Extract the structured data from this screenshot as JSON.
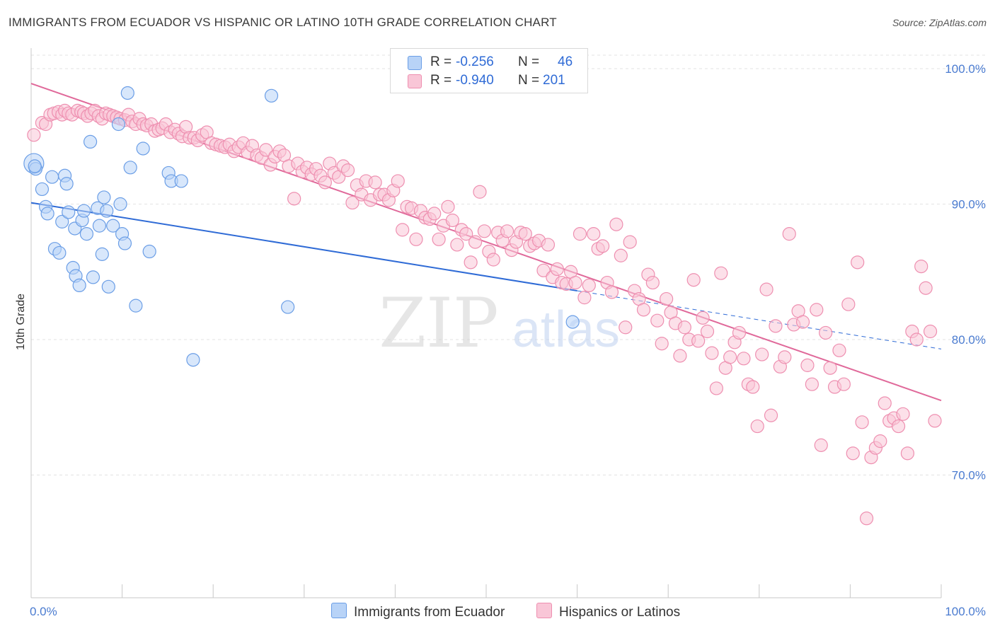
{
  "header": {
    "title": "IMMIGRANTS FROM ECUADOR VS HISPANIC OR LATINO 10TH GRADE CORRELATION CHART",
    "source": "Source: ZipAtlas.com"
  },
  "watermark": {
    "zip": "ZIP",
    "atlas": "atlas"
  },
  "legend": {
    "rows": [
      {
        "r_label": "R =",
        "r_value": "-0.256",
        "n_label": "N =",
        "n_value": "46",
        "color": "#b8d3f7",
        "border": "#6b9ee6"
      },
      {
        "r_label": "R =",
        "r_value": "-0.940",
        "n_label": "N =",
        "n_value": "201",
        "color": "#f9c6d7",
        "border": "#ee8fb0"
      }
    ]
  },
  "bottom_legend": {
    "items": [
      {
        "label": "Immigrants from Ecuador",
        "color": "#b8d3f7",
        "border": "#6b9ee6"
      },
      {
        "label": "Hispanics or Latinos",
        "color": "#f9c6d7",
        "border": "#ee8fb0"
      }
    ]
  },
  "chart_data": {
    "type": "scatter",
    "title": "IMMIGRANTS FROM ECUADOR VS HISPANIC OR LATINO 10TH GRADE CORRELATION CHART",
    "ylabel": "10th Grade",
    "xlabel": "",
    "x_tick_labels": [
      "0.0%",
      "100.0%"
    ],
    "y_tick_labels": [
      "100.0%",
      "90.0%",
      "80.0%",
      "70.0%"
    ],
    "y_ticks": [
      100,
      90,
      80,
      70
    ],
    "xlim": [
      0,
      100
    ],
    "ylim": [
      61,
      101
    ],
    "grid": true,
    "series": [
      {
        "name": "Immigrants from Ecuador",
        "color": "#6b9ee6",
        "fill": "#b8d3f7",
        "trend": {
          "x0": 0,
          "y0": 90.1,
          "x1": 60,
          "y1": 83.6,
          "dash_to_x": 100,
          "dash_to_y": 79.3,
          "color": "#2f6bd6"
        },
        "points": [
          [
            0.3,
            93.0
          ],
          [
            0.5,
            92.6
          ],
          [
            0.4,
            92.8
          ],
          [
            1.2,
            91.1
          ],
          [
            1.6,
            89.8
          ],
          [
            1.8,
            89.3
          ],
          [
            2.3,
            92.0
          ],
          [
            2.6,
            86.7
          ],
          [
            3.1,
            86.4
          ],
          [
            3.4,
            88.7
          ],
          [
            3.7,
            92.1
          ],
          [
            3.9,
            91.5
          ],
          [
            4.1,
            89.4
          ],
          [
            4.6,
            85.3
          ],
          [
            4.8,
            88.2
          ],
          [
            4.9,
            84.7
          ],
          [
            5.3,
            84.0
          ],
          [
            5.6,
            88.8
          ],
          [
            5.8,
            89.5
          ],
          [
            6.1,
            87.8
          ],
          [
            6.5,
            94.6
          ],
          [
            6.8,
            84.6
          ],
          [
            7.3,
            89.7
          ],
          [
            7.5,
            88.4
          ],
          [
            7.8,
            86.3
          ],
          [
            8.0,
            90.5
          ],
          [
            8.3,
            89.5
          ],
          [
            8.5,
            83.9
          ],
          [
            9.0,
            88.4
          ],
          [
            9.6,
            95.9
          ],
          [
            9.8,
            90.0
          ],
          [
            10.0,
            87.8
          ],
          [
            10.3,
            87.1
          ],
          [
            10.6,
            98.2
          ],
          [
            10.9,
            92.7
          ],
          [
            11.5,
            82.5
          ],
          [
            12.3,
            94.1
          ],
          [
            13.0,
            86.5
          ],
          [
            15.1,
            92.3
          ],
          [
            15.4,
            91.7
          ],
          [
            16.5,
            91.7
          ],
          [
            17.8,
            78.5
          ],
          [
            26.4,
            98.0
          ],
          [
            28.2,
            82.4
          ],
          [
            59.5,
            81.3
          ]
        ]
      },
      {
        "name": "Hispanics or Latinos",
        "color": "#ee8fb0",
        "fill": "#f9c6d7",
        "trend": {
          "x0": 0,
          "y0": 98.9,
          "x1": 100,
          "y1": 75.5,
          "color": "#e0699a"
        },
        "points": [
          [
            0.3,
            95.1
          ],
          [
            1.2,
            96.0
          ],
          [
            1.6,
            95.9
          ],
          [
            2.1,
            96.6
          ],
          [
            2.5,
            96.7
          ],
          [
            3.0,
            96.8
          ],
          [
            3.4,
            96.6
          ],
          [
            3.7,
            96.9
          ],
          [
            4.1,
            96.7
          ],
          [
            4.5,
            96.6
          ],
          [
            5.1,
            96.9
          ],
          [
            5.5,
            96.8
          ],
          [
            5.8,
            96.7
          ],
          [
            6.2,
            96.5
          ],
          [
            6.6,
            96.7
          ],
          [
            7.0,
            96.9
          ],
          [
            7.4,
            96.5
          ],
          [
            7.8,
            96.3
          ],
          [
            8.2,
            96.7
          ],
          [
            8.6,
            96.6
          ],
          [
            9.0,
            96.5
          ],
          [
            9.4,
            96.4
          ],
          [
            9.8,
            96.3
          ],
          [
            10.3,
            96.2
          ],
          [
            10.7,
            96.6
          ],
          [
            11.1,
            96.1
          ],
          [
            11.5,
            95.9
          ],
          [
            11.9,
            96.3
          ],
          [
            12.3,
            95.9
          ],
          [
            12.7,
            95.8
          ],
          [
            13.2,
            95.9
          ],
          [
            13.6,
            95.4
          ],
          [
            14.0,
            95.5
          ],
          [
            14.4,
            95.6
          ],
          [
            14.8,
            95.9
          ],
          [
            15.3,
            95.3
          ],
          [
            15.8,
            95.5
          ],
          [
            16.2,
            95.2
          ],
          [
            16.6,
            95.0
          ],
          [
            17.0,
            95.7
          ],
          [
            17.4,
            94.9
          ],
          [
            17.9,
            94.9
          ],
          [
            18.3,
            94.7
          ],
          [
            18.8,
            95.1
          ],
          [
            19.3,
            95.3
          ],
          [
            19.8,
            94.5
          ],
          [
            20.3,
            94.4
          ],
          [
            20.8,
            94.3
          ],
          [
            21.3,
            94.2
          ],
          [
            21.8,
            94.4
          ],
          [
            22.3,
            93.9
          ],
          [
            22.8,
            94.2
          ],
          [
            23.3,
            94.5
          ],
          [
            23.8,
            93.8
          ],
          [
            24.3,
            94.3
          ],
          [
            24.8,
            93.6
          ],
          [
            25.3,
            93.4
          ],
          [
            25.8,
            94.0
          ],
          [
            26.3,
            92.9
          ],
          [
            26.8,
            93.5
          ],
          [
            27.3,
            93.9
          ],
          [
            27.8,
            93.6
          ],
          [
            28.3,
            92.8
          ],
          [
            28.9,
            90.4
          ],
          [
            29.3,
            93.0
          ],
          [
            29.8,
            92.4
          ],
          [
            30.3,
            92.7
          ],
          [
            30.8,
            92.2
          ],
          [
            31.3,
            92.6
          ],
          [
            31.8,
            92.1
          ],
          [
            32.3,
            91.6
          ],
          [
            32.8,
            93.0
          ],
          [
            33.3,
            92.3
          ],
          [
            33.8,
            92.0
          ],
          [
            34.3,
            92.8
          ],
          [
            34.8,
            92.5
          ],
          [
            35.3,
            90.1
          ],
          [
            35.8,
            91.4
          ],
          [
            36.3,
            90.7
          ],
          [
            36.8,
            91.7
          ],
          [
            37.3,
            90.3
          ],
          [
            37.8,
            91.6
          ],
          [
            38.3,
            90.7
          ],
          [
            38.8,
            90.7
          ],
          [
            39.3,
            90.3
          ],
          [
            39.8,
            91.0
          ],
          [
            40.3,
            91.7
          ],
          [
            40.8,
            88.1
          ],
          [
            41.3,
            89.8
          ],
          [
            41.8,
            89.7
          ],
          [
            42.3,
            87.4
          ],
          [
            42.8,
            89.5
          ],
          [
            43.3,
            89.0
          ],
          [
            43.8,
            88.9
          ],
          [
            44.3,
            89.3
          ],
          [
            44.8,
            87.4
          ],
          [
            45.3,
            88.4
          ],
          [
            45.8,
            89.8
          ],
          [
            46.3,
            88.8
          ],
          [
            46.8,
            87.0
          ],
          [
            47.3,
            88.1
          ],
          [
            47.8,
            87.8
          ],
          [
            48.3,
            85.7
          ],
          [
            48.8,
            87.2
          ],
          [
            49.3,
            90.9
          ],
          [
            49.8,
            88.0
          ],
          [
            50.3,
            86.5
          ],
          [
            50.8,
            85.9
          ],
          [
            51.3,
            87.9
          ],
          [
            51.8,
            87.3
          ],
          [
            52.3,
            88.0
          ],
          [
            52.8,
            86.6
          ],
          [
            53.3,
            87.2
          ],
          [
            53.8,
            87.9
          ],
          [
            54.3,
            87.8
          ],
          [
            54.8,
            86.9
          ],
          [
            55.3,
            87.1
          ],
          [
            55.8,
            87.3
          ],
          [
            56.3,
            85.1
          ],
          [
            56.8,
            87.0
          ],
          [
            57.3,
            84.6
          ],
          [
            57.8,
            85.2
          ],
          [
            58.3,
            84.2
          ],
          [
            58.8,
            84.1
          ],
          [
            59.3,
            85.0
          ],
          [
            59.8,
            84.2
          ],
          [
            60.3,
            87.8
          ],
          [
            60.8,
            83.1
          ],
          [
            61.3,
            84.0
          ],
          [
            61.8,
            87.8
          ],
          [
            62.3,
            86.7
          ],
          [
            62.8,
            86.9
          ],
          [
            63.3,
            84.2
          ],
          [
            63.8,
            83.5
          ],
          [
            64.3,
            88.5
          ],
          [
            64.8,
            86.2
          ],
          [
            65.3,
            80.9
          ],
          [
            65.8,
            87.2
          ],
          [
            66.3,
            83.6
          ],
          [
            66.8,
            83.0
          ],
          [
            67.3,
            82.2
          ],
          [
            67.8,
            84.8
          ],
          [
            68.3,
            84.2
          ],
          [
            68.8,
            81.4
          ],
          [
            69.3,
            79.7
          ],
          [
            69.8,
            83.0
          ],
          [
            70.3,
            82.0
          ],
          [
            70.8,
            81.2
          ],
          [
            71.3,
            78.8
          ],
          [
            71.8,
            80.9
          ],
          [
            72.3,
            80.0
          ],
          [
            72.8,
            84.4
          ],
          [
            73.3,
            79.9
          ],
          [
            73.8,
            81.6
          ],
          [
            74.3,
            80.6
          ],
          [
            74.8,
            79.0
          ],
          [
            75.3,
            76.4
          ],
          [
            75.8,
            84.9
          ],
          [
            76.3,
            77.9
          ],
          [
            76.8,
            78.7
          ],
          [
            77.3,
            79.8
          ],
          [
            77.8,
            80.5
          ],
          [
            78.3,
            78.6
          ],
          [
            78.8,
            76.7
          ],
          [
            79.3,
            76.5
          ],
          [
            79.8,
            73.6
          ],
          [
            80.3,
            78.9
          ],
          [
            80.8,
            83.7
          ],
          [
            81.3,
            74.4
          ],
          [
            81.8,
            81.0
          ],
          [
            82.3,
            78.0
          ],
          [
            82.8,
            78.7
          ],
          [
            83.3,
            87.8
          ],
          [
            83.8,
            81.1
          ],
          [
            84.3,
            82.1
          ],
          [
            84.8,
            81.3
          ],
          [
            85.3,
            78.1
          ],
          [
            85.8,
            76.7
          ],
          [
            86.3,
            82.2
          ],
          [
            86.8,
            72.2
          ],
          [
            87.3,
            80.5
          ],
          [
            87.8,
            77.9
          ],
          [
            88.3,
            76.5
          ],
          [
            88.8,
            79.2
          ],
          [
            89.3,
            76.7
          ],
          [
            89.8,
            82.6
          ],
          [
            90.3,
            71.6
          ],
          [
            90.8,
            85.7
          ],
          [
            91.3,
            73.9
          ],
          [
            91.8,
            66.8
          ],
          [
            92.3,
            71.3
          ],
          [
            92.8,
            72.0
          ],
          [
            93.3,
            72.5
          ],
          [
            93.8,
            75.3
          ],
          [
            94.3,
            74.0
          ],
          [
            94.8,
            74.2
          ],
          [
            95.3,
            73.6
          ],
          [
            95.8,
            74.5
          ],
          [
            96.3,
            71.6
          ],
          [
            96.8,
            80.6
          ],
          [
            97.3,
            80.0
          ],
          [
            97.8,
            85.4
          ],
          [
            98.3,
            83.8
          ],
          [
            98.8,
            80.6
          ],
          [
            99.3,
            74.0
          ]
        ]
      }
    ]
  }
}
